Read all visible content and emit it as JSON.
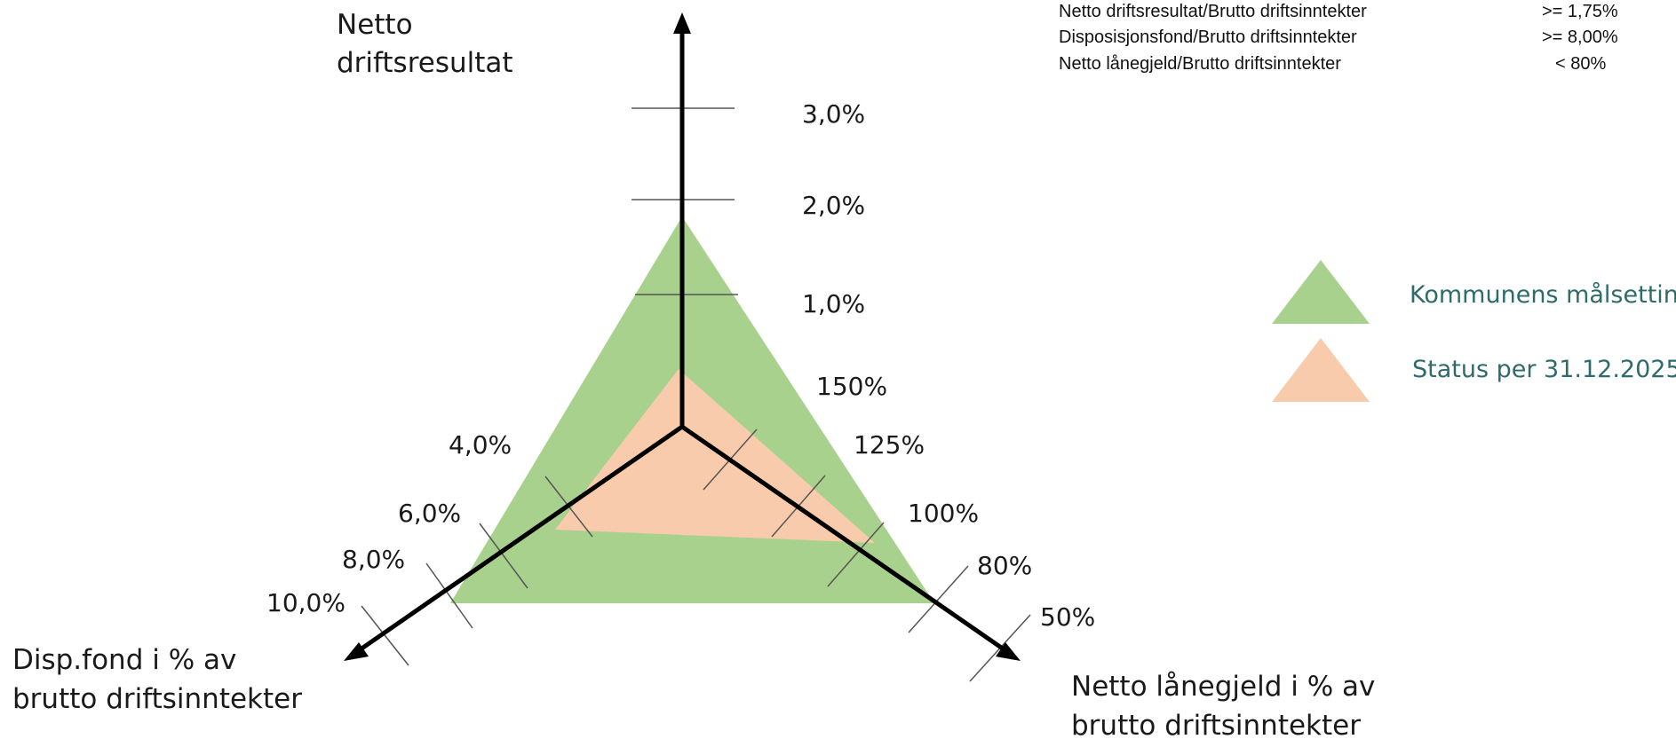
{
  "chart_data": {
    "type": "radar",
    "axes": [
      {
        "name": "Netto driftsresultat",
        "title_lines": [
          "Netto",
          "driftsresultat"
        ],
        "ticks": [
          "1,0%",
          "2,0%",
          "3,0%"
        ]
      },
      {
        "name": "Disp.fond i % av brutto driftsinntekter",
        "title_lines": [
          "Disp.fond i % av",
          "brutto driftsinntekter"
        ],
        "ticks": [
          "4,0%",
          "6,0%",
          "8,0%",
          "10,0%"
        ]
      },
      {
        "name": "Netto lånegjeld i % av brutto driftsinntekter",
        "title_lines": [
          "Netto lånegjeld i % av",
          "brutto driftsinntekter"
        ],
        "ticks": [
          "150%",
          "125%",
          "100%",
          "80%",
          "50%"
        ]
      }
    ],
    "series": [
      {
        "name": "Kommunens målsetting",
        "color": "#a9d18e",
        "values": {
          "netto_driftsresultat": "1,75%",
          "disp_fond": "8,0%",
          "netto_lanegjeld": "80%"
        }
      },
      {
        "name": "Status per 31.12.2025",
        "color": "#f8cbad",
        "values": {
          "netto_driftsresultat": "0,6%",
          "disp_fond": "5,5%",
          "netto_lanegjeld": "90%"
        }
      }
    ],
    "legend_position": "right"
  },
  "targets": [
    {
      "label": "Netto driftsresultat/Brutto driftsinntekter",
      "value": ">= 1,75%"
    },
    {
      "label": "Disposisjonsfond/Brutto driftsinntekter",
      "value": ">= 8,00%"
    },
    {
      "label": "Netto lånegjeld/Brutto driftsinntekter",
      "value": "< 80%"
    }
  ],
  "legend": [
    {
      "label": "Kommunens målsetting",
      "color": "#a9d18e",
      "text_color": "#2e6b6b"
    },
    {
      "label": "Status per 31.12.2025",
      "color": "#f8cbad",
      "text_color": "#2e6b6b"
    }
  ]
}
